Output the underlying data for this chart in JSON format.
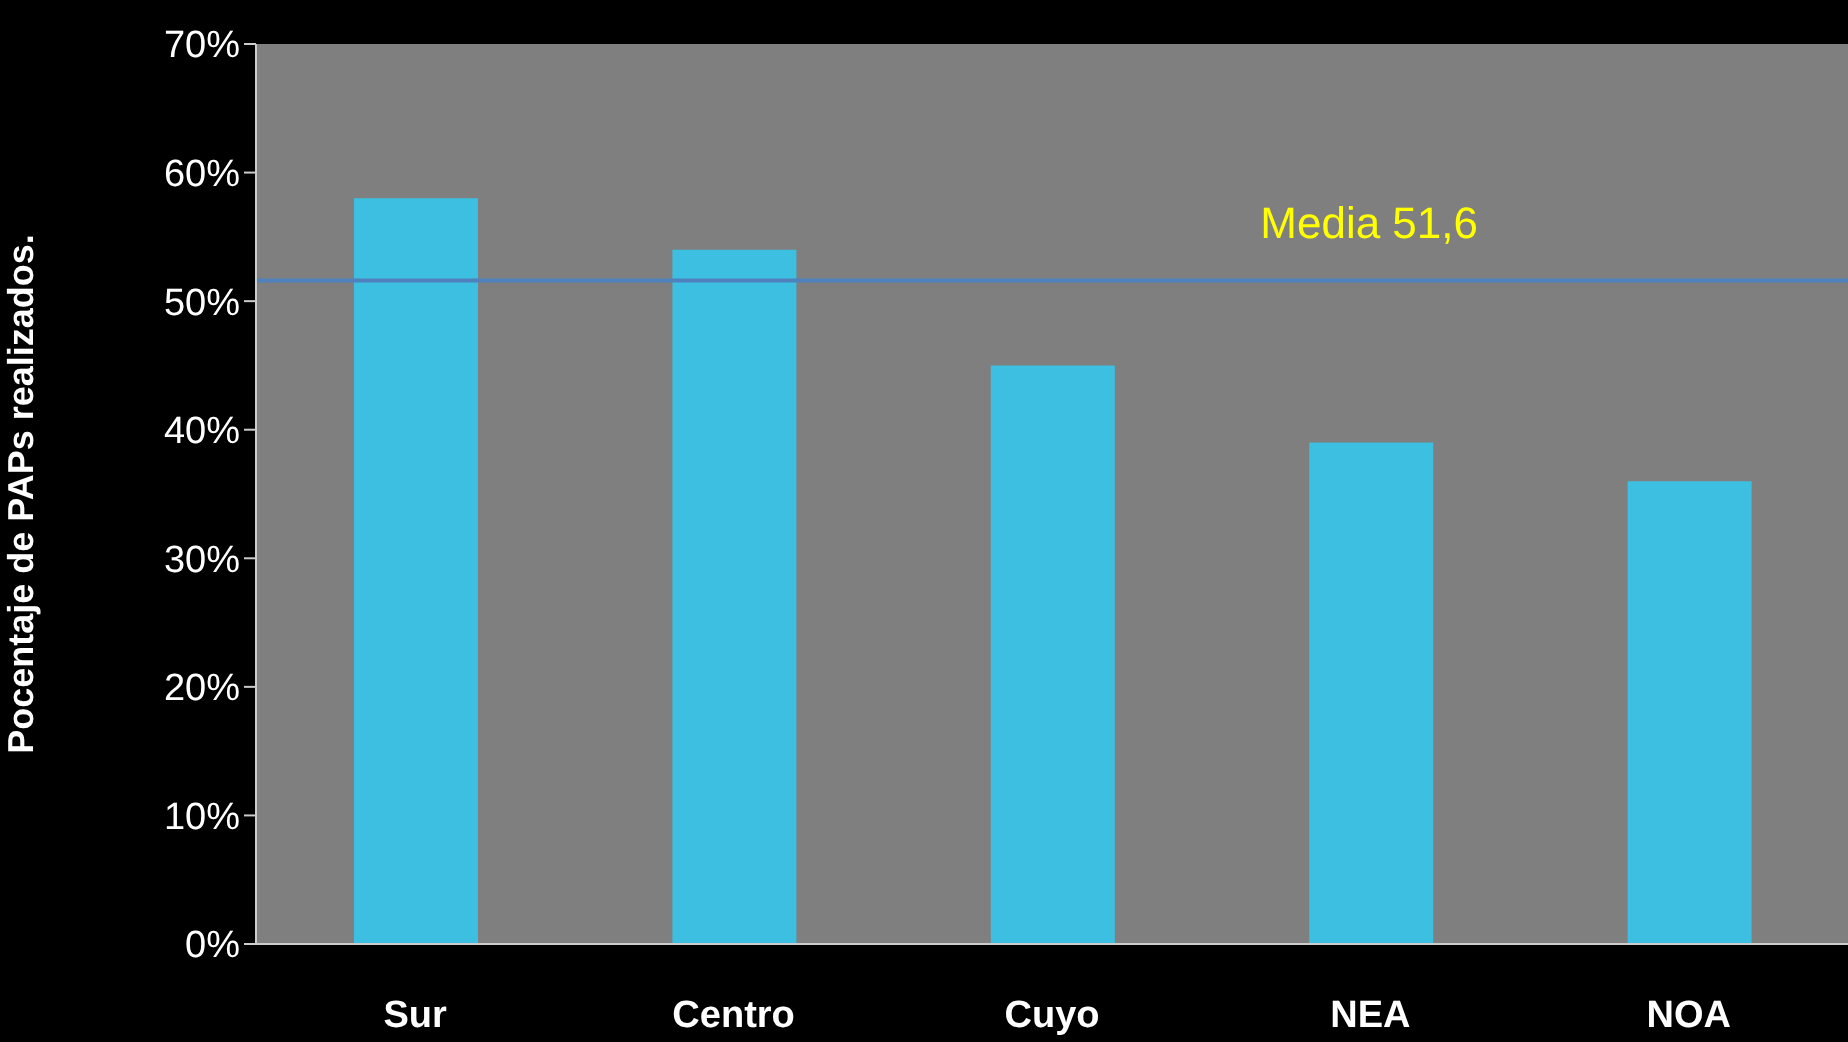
{
  "chart_data": {
    "type": "bar",
    "ylabel": "Pocentaje de PAPs realizados.",
    "categories": [
      "Sur",
      "Centro",
      "Cuyo",
      "NEA",
      "NOA"
    ],
    "values": [
      58,
      54,
      45,
      39,
      36
    ],
    "color": "#3cbfe0",
    "ylim": [
      0,
      70
    ],
    "yticks": [
      {
        "value": 0,
        "label": "0%"
      },
      {
        "value": 10,
        "label": "10%"
      },
      {
        "value": 20,
        "label": "20%"
      },
      {
        "value": 30,
        "label": "30%"
      },
      {
        "value": 40,
        "label": "40%"
      },
      {
        "value": 50,
        "label": "50%"
      },
      {
        "value": 60,
        "label": "60%"
      },
      {
        "value": 70,
        "label": "70%"
      }
    ],
    "ref_lines": [
      {
        "axis": "y",
        "value": 51.6,
        "label": "Media 51,6",
        "color": "#4f81bd"
      }
    ],
    "grid": false
  }
}
